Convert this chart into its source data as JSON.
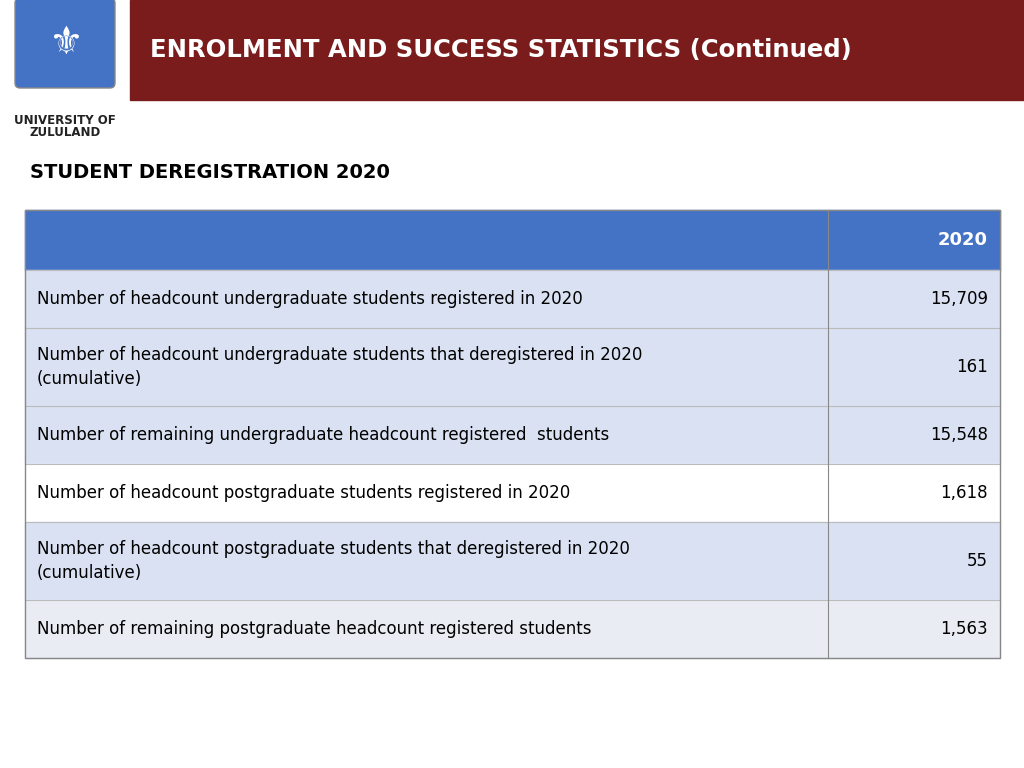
{
  "title": "ENROLMENT AND SUCCESS STATISTICS (Continued)",
  "title_bg_color": "#7B1C1C",
  "title_text_color": "#FFFFFF",
  "subtitle": "STUDENT DEREGISTRATION 2020",
  "header_bg_color": "#4472C4",
  "header_text_color": "#FFFFFF",
  "header_label": "2020",
  "table_rows": [
    {
      "label": "Number of headcount undergraduate students registered in 2020",
      "value": "15,709",
      "bg": "#D9E1F2",
      "two_line": false
    },
    {
      "label": "Number of headcount undergraduate students that deregistered in 2020\n(cumulative)",
      "value": "161",
      "bg": "#D9E1F2",
      "two_line": true
    },
    {
      "label": "Number of remaining undergraduate headcount registered  students",
      "value": "15,548",
      "bg": "#D9E1F2",
      "two_line": false
    },
    {
      "label": "Number of headcount postgraduate students registered in 2020",
      "value": "1,618",
      "bg": "#FFFFFF",
      "two_line": false
    },
    {
      "label": "Number of headcount postgraduate students that deregistered in 2020\n(cumulative)",
      "value": "55",
      "bg": "#D9E1F2",
      "two_line": true
    },
    {
      "label": "Number of remaining postgraduate headcount registered students",
      "value": "1,563",
      "bg": "#EAECF4",
      "two_line": false
    }
  ],
  "bg_color": "#FFFFFF",
  "university_name_line1": "UNIVERSITY OF",
  "university_name_line2": "ZULULAND"
}
